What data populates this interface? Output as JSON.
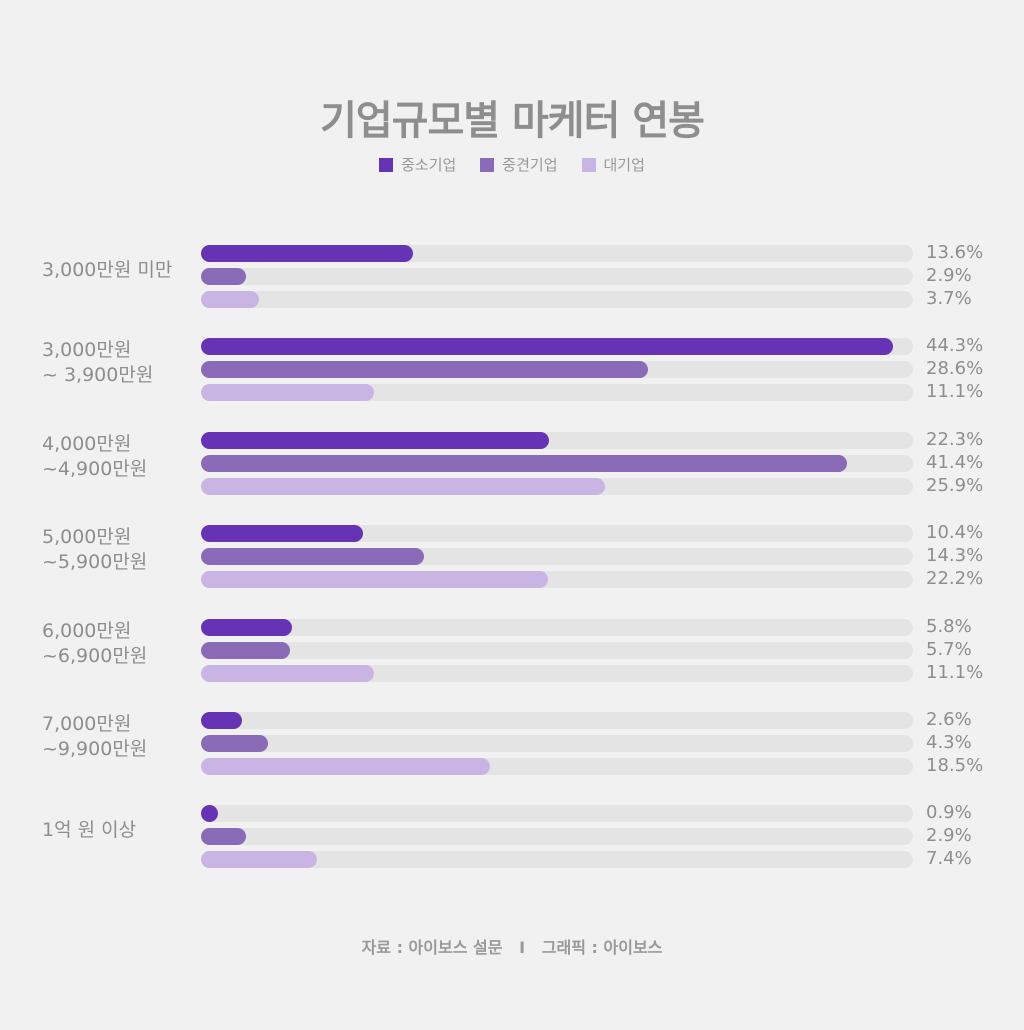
{
  "chart_data": {
    "type": "bar",
    "orientation": "horizontal",
    "title": "기업규모별 마케터 연봉",
    "categories": [
      "3,000만원 미만",
      "3,000만원\n~ 3,900만원",
      "4,000만원\n~4,900만원",
      "5,000만원\n~5,900만원",
      "6,000만원\n~6,900만원",
      "7,000만원\n~9,900만원",
      "1억 원 이상"
    ],
    "series": [
      {
        "name": "중소기업",
        "color": "#6633b5",
        "values": [
          13.6,
          44.3,
          22.3,
          10.4,
          5.8,
          2.6,
          0.9
        ]
      },
      {
        "name": "중견기업",
        "color": "#8a6bb8",
        "values": [
          2.9,
          28.6,
          41.4,
          14.3,
          5.7,
          4.3,
          2.9
        ]
      },
      {
        "name": "대기업",
        "color": "#c9b5e4",
        "values": [
          3.7,
          11.1,
          25.9,
          22.2,
          11.1,
          18.5,
          7.4
        ]
      }
    ],
    "value_suffix": "%",
    "xlim": [
      0,
      45.6
    ],
    "legend": "top-center",
    "grid": false
  },
  "source": "자료 : 아이보스 설문   I   그래픽 : 아이보스"
}
